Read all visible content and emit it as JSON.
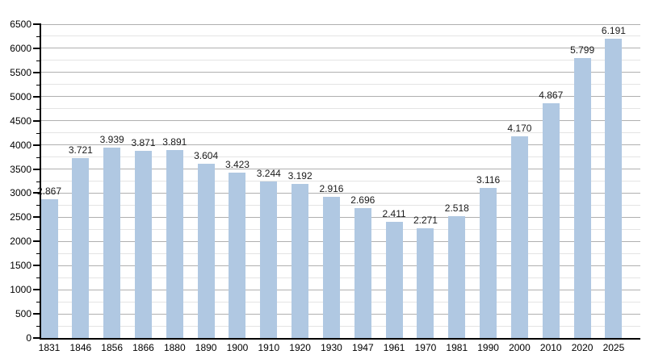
{
  "chart_data": {
    "type": "bar",
    "title": "",
    "xlabel": "",
    "ylabel": "",
    "categories": [
      "1831",
      "1846",
      "1856",
      "1866",
      "1880",
      "1890",
      "1900",
      "1910",
      "1920",
      "1930",
      "1947",
      "1961",
      "1970",
      "1981",
      "1990",
      "2000",
      "2010",
      "2020",
      "2025"
    ],
    "values": [
      2867,
      3721,
      3939,
      3871,
      3891,
      3604,
      3423,
      3244,
      3192,
      2916,
      2696,
      2411,
      2271,
      2518,
      3116,
      4170,
      4867,
      5799,
      6191
    ],
    "value_labels": [
      "2.867",
      "3.721",
      "3.939",
      "3.871",
      "3.891",
      "3.604",
      "3.423",
      "3.244",
      "3.192",
      "2.916",
      "2.696",
      "2.411",
      "2.271",
      "2.518",
      "3.116",
      "4.170",
      "4.867",
      "5.799",
      "6.191"
    ],
    "ylim": [
      0,
      6500
    ],
    "ytick_step": 500,
    "yminor_step": 250,
    "ytick_labels": [
      "0",
      "500",
      "1000",
      "1500",
      "2000",
      "2500",
      "3000",
      "3500",
      "4000",
      "4500",
      "5000",
      "5500",
      "6000",
      "6500"
    ],
    "grid": true,
    "legend_position": "none",
    "colors": {
      "bar_fill": "#b0c8e2",
      "grid_major": "#b0b0b0",
      "grid_minor": "#e4e4e4",
      "axis": "#000000",
      "text": "#000000",
      "background": "#ffffff"
    }
  }
}
